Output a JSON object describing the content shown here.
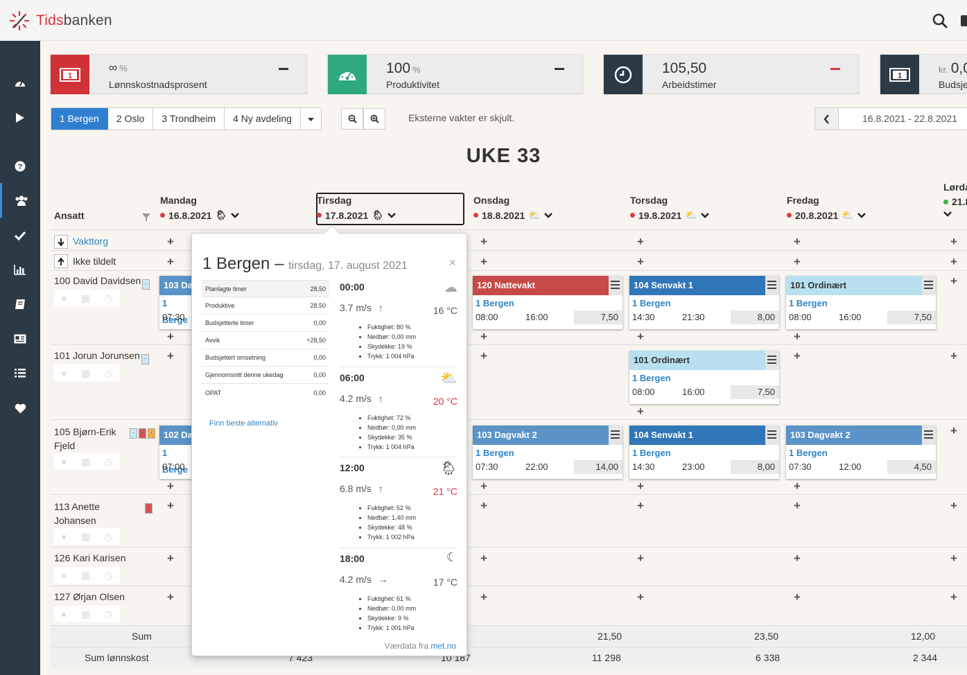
{
  "app": {
    "name_prefix": "Tids",
    "name_suffix": "banken"
  },
  "kpis": [
    {
      "value": "∞",
      "unit": "%",
      "label": "Lønnskostnadsprosent",
      "color": "#cf3237"
    },
    {
      "value": "100",
      "unit": "%",
      "label": "Produktivitet",
      "color": "#2eaa7e"
    },
    {
      "value": "105,50",
      "unit": "",
      "label": "Arbeidstimer",
      "color": "#2b3a45"
    },
    {
      "value": "0,0",
      "unit": "kr.",
      "label": "Budsje",
      "color": "#2b3a45"
    }
  ],
  "tabs": [
    "1 Bergen",
    "2 Oslo",
    "3 Trondheim",
    "4 Ny avdeling"
  ],
  "hidden_note": "Eksterne vakter er skjult.",
  "date_range": "16.8.2021 - 22.8.2021",
  "week_title": "UKE 33",
  "ansatt_header": "Ansatt",
  "days": [
    {
      "name": "Mandag",
      "date": "16.8.2021"
    },
    {
      "name": "Tirsdag",
      "date": "17.8.2021"
    },
    {
      "name": "Onsdag",
      "date": "18.8.2021"
    },
    {
      "name": "Torsdag",
      "date": "19.8.2021"
    },
    {
      "name": "Fredag",
      "date": "20.8.2021"
    },
    {
      "name": "Lørda",
      "date": "21.8"
    }
  ],
  "rows": {
    "vakttorg": "Vakttorg",
    "ikke_tildelt": "Ikke tildelt"
  },
  "employees": [
    "100 David Davidsen",
    "101 Jorun Jorunsen",
    "105 Bjørn-Erik Fjeld",
    "113 Anette Johansen",
    "126 Kari Karisen",
    "127 Ørjan Olsen"
  ],
  "shifts": {
    "mon1": {
      "title": "103 Da",
      "dep": "1 Berge",
      "start": "07:30"
    },
    "mon2": {
      "title": "102 Da",
      "dep": "1 Berge",
      "start": "07:00"
    },
    "wed1": {
      "title": "120 Nattevakt",
      "dep": "1 Bergen",
      "start": "08:00",
      "end": "16:00",
      "dur": "7,50"
    },
    "thu1": {
      "title": "104 Senvakt 1",
      "dep": "1 Bergen",
      "start": "14:30",
      "end": "21:30",
      "dur": "8,00"
    },
    "fri1": {
      "title": "101 Ordinært",
      "dep": "1 Bergen",
      "start": "08:00",
      "end": "16:00",
      "dur": "7,50"
    },
    "thu2": {
      "title": "101 Ordinært",
      "dep": "1 Bergen",
      "start": "08:00",
      "end": "16:00",
      "dur": "7,50"
    },
    "wed3": {
      "title": "103 Dagvakt 2",
      "dep": "1 Bergen",
      "start": "07:30",
      "end": "22:00",
      "dur": "14,00"
    },
    "thu3": {
      "title": "104 Senvakt 1",
      "dep": "1 Bergen",
      "start": "14:30",
      "end": "23:00",
      "dur": "8,00"
    },
    "fri3": {
      "title": "103 Dagvakt 2",
      "dep": "1 Bergen",
      "start": "07:30",
      "end": "12:00",
      "dur": "4,50"
    }
  },
  "sum": {
    "label": "Sum",
    "label2": "Sum lønnskost",
    "vals": [
      "21,50",
      "23,50",
      "12,00"
    ],
    "vals2": [
      "7 423",
      "10 187",
      "11 298",
      "6 338",
      "2 344"
    ]
  },
  "popover": {
    "title": "1 Bergen –",
    "subtitle": "tirsdag, 17. august 2021",
    "stats": [
      [
        "Planlagte timer",
        "28,50"
      ],
      [
        "Produktive",
        "28,50"
      ],
      [
        "Budsjetterte timer",
        "0,00"
      ],
      [
        "Avvik",
        "+28,50"
      ],
      [
        "Budsjettert omsetning",
        "0,00"
      ],
      [
        "Gjennomsnitt denne ukedag",
        "0,00"
      ],
      [
        "OPAT",
        "0,00"
      ]
    ],
    "finn": "Finn beste alternativ",
    "weather": [
      {
        "time": "00:00",
        "wind": "3.7 m/s",
        "arrow": "↑",
        "temp": "16 °C",
        "hot": false,
        "icon": "night-cloud",
        "details": [
          "Fuktighet: 80 %",
          "Nedbør: 0,00 mm",
          "Skydekke: 19 %",
          "Trykk: 1 004 hPa"
        ]
      },
      {
        "time": "06:00",
        "wind": "4.2 m/s",
        "arrow": "↑",
        "temp": "20 °C",
        "hot": true,
        "icon": "sun-cloud",
        "details": [
          "Fuktighet: 72 %",
          "Nedbør: 0,00 mm",
          "Skydekke: 35 %",
          "Trykk: 1 004 hPa"
        ]
      },
      {
        "time": "12:00",
        "wind": "6.8 m/s",
        "arrow": "↑",
        "temp": "21 °C",
        "hot": true,
        "icon": "sun-rain",
        "details": [
          "Fuktighet: 52 %",
          "Nedbør: 1,40 mm",
          "Skydekke: 48 %",
          "Trykk: 1 002 hPa"
        ]
      },
      {
        "time": "18:00",
        "wind": "4.2 m/s",
        "arrow": "→",
        "temp": "17 °C",
        "hot": false,
        "icon": "moon",
        "details": [
          "Fuktighet: 61 %",
          "Nedbør: 0,00 mm",
          "Skydekke: 9 %",
          "Trykk: 1 001 hPa"
        ]
      }
    ],
    "credit_prefix": "Værdata fra",
    "credit_link": "met.no"
  }
}
